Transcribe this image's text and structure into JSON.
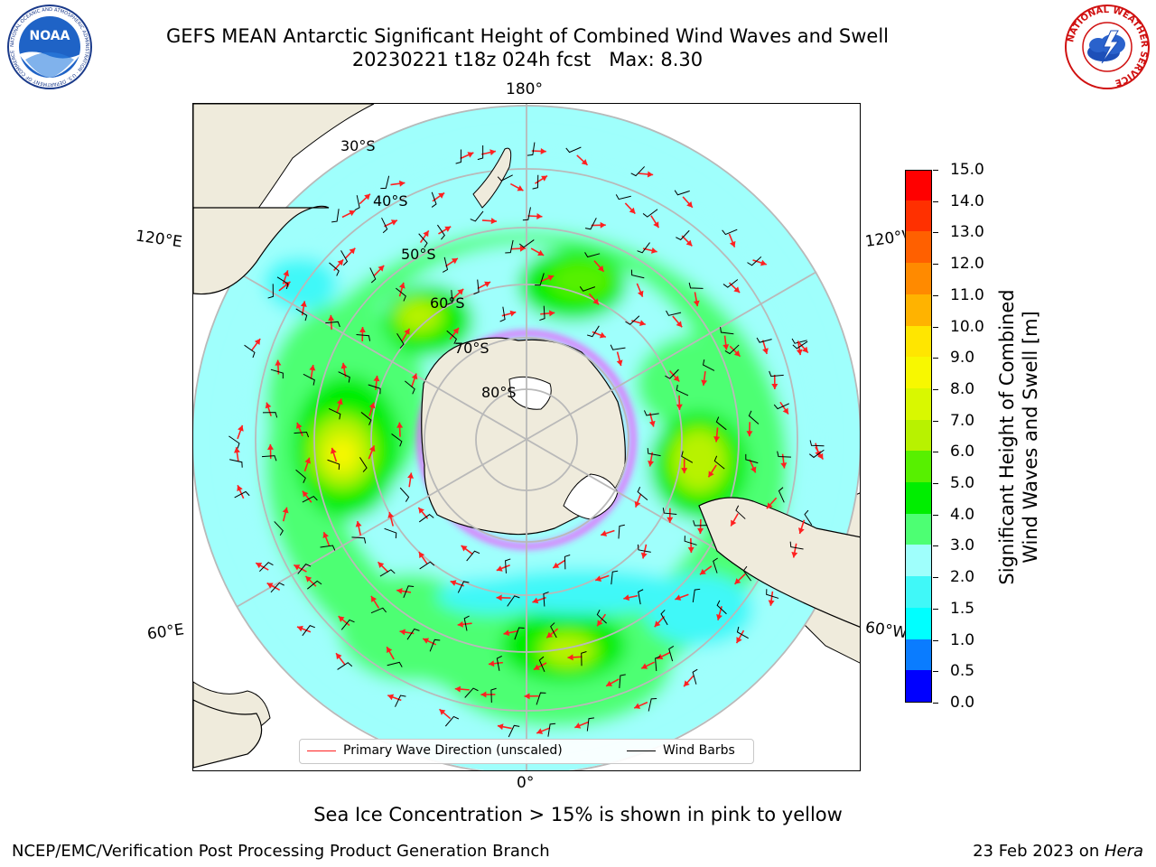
{
  "header": {
    "title_line1": "GEFS MEAN Antarctic Significant Height of Combined Wind Waves and Swell",
    "title_line2": "20230221 t18z 024h fcst   Max: 8.30"
  },
  "logos": {
    "left": {
      "name": "noaa-logo",
      "text": "NOAA",
      "ring_text": "NATIONAL OCEANIC AND ATMOSPHERIC ADMINISTRATION · U.S. DEPARTMENT OF COMMERCE"
    },
    "right": {
      "name": "nws-logo",
      "ring_text": "NATIONAL WEATHER SERVICE"
    }
  },
  "map": {
    "projection": "south polar stereographic",
    "longitude_labels": {
      "top": "180°",
      "bottom": "0°",
      "upper_left": "120°E",
      "lower_left": "60°E",
      "upper_right": "120°W",
      "lower_right": "60°W"
    },
    "latitude_labels": [
      "30°S",
      "40°S",
      "50°S",
      "60°S",
      "70°S",
      "80°S"
    ],
    "max_value": 8.3
  },
  "legend": {
    "primary_wave_label": "Primary Wave Direction (unscaled)",
    "wind_barb_label": "Wind Barbs",
    "primary_wave_color": "#ff2020",
    "wind_barb_color": "#000000"
  },
  "colorbar": {
    "title_line1": "Significant Height of Combined",
    "title_line2": "Wind Waves and Swell [m]",
    "ticks": [
      "0.0",
      "0.5",
      "1.0",
      "1.5",
      "2.0",
      "3.0",
      "4.0",
      "5.0",
      "6.0",
      "7.0",
      "8.0",
      "9.0",
      "10.0",
      "11.0",
      "12.0",
      "13.0",
      "14.0",
      "15.0"
    ],
    "colors": [
      "#0000ff",
      "#0a7cff",
      "#00ffff",
      "#40f8f8",
      "#9ffffc",
      "#4dff73",
      "#00ee00",
      "#57f000",
      "#b8f200",
      "#d9f800",
      "#f8f800",
      "#ffe600",
      "#ffb300",
      "#ff8a00",
      "#ff6000",
      "#ff3000",
      "#ff0000"
    ]
  },
  "sea_ice_note": "Sea Ice Concentration > 15% is shown in pink to yellow",
  "footer": {
    "left": "NCEP/EMC/Verification Post Processing Product Generation Branch",
    "right_date": "23 Feb 2023 on ",
    "right_host": "Hera"
  }
}
